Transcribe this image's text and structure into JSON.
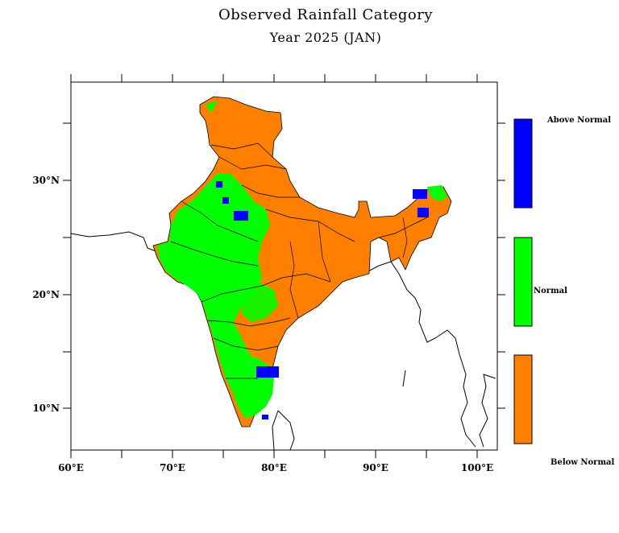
{
  "title": "Observed Rainfall Category",
  "subtitle": "Year 2025 (JAN)",
  "x_ticks": [
    "60°E",
    "70°E",
    "80°E",
    "90°E",
    "100°E"
  ],
  "y_ticks": [
    "30°N",
    "20°N",
    "10°N"
  ],
  "legend": [
    {
      "label": "Above Normal",
      "color": "#0000ff"
    },
    {
      "label": "Normal",
      "color": "#00ff00"
    },
    {
      "label": "Below Normal",
      "color": "#ff8000"
    }
  ],
  "colors": {
    "below": "#ff8000",
    "normal": "#00ff00",
    "above": "#0000ff"
  }
}
